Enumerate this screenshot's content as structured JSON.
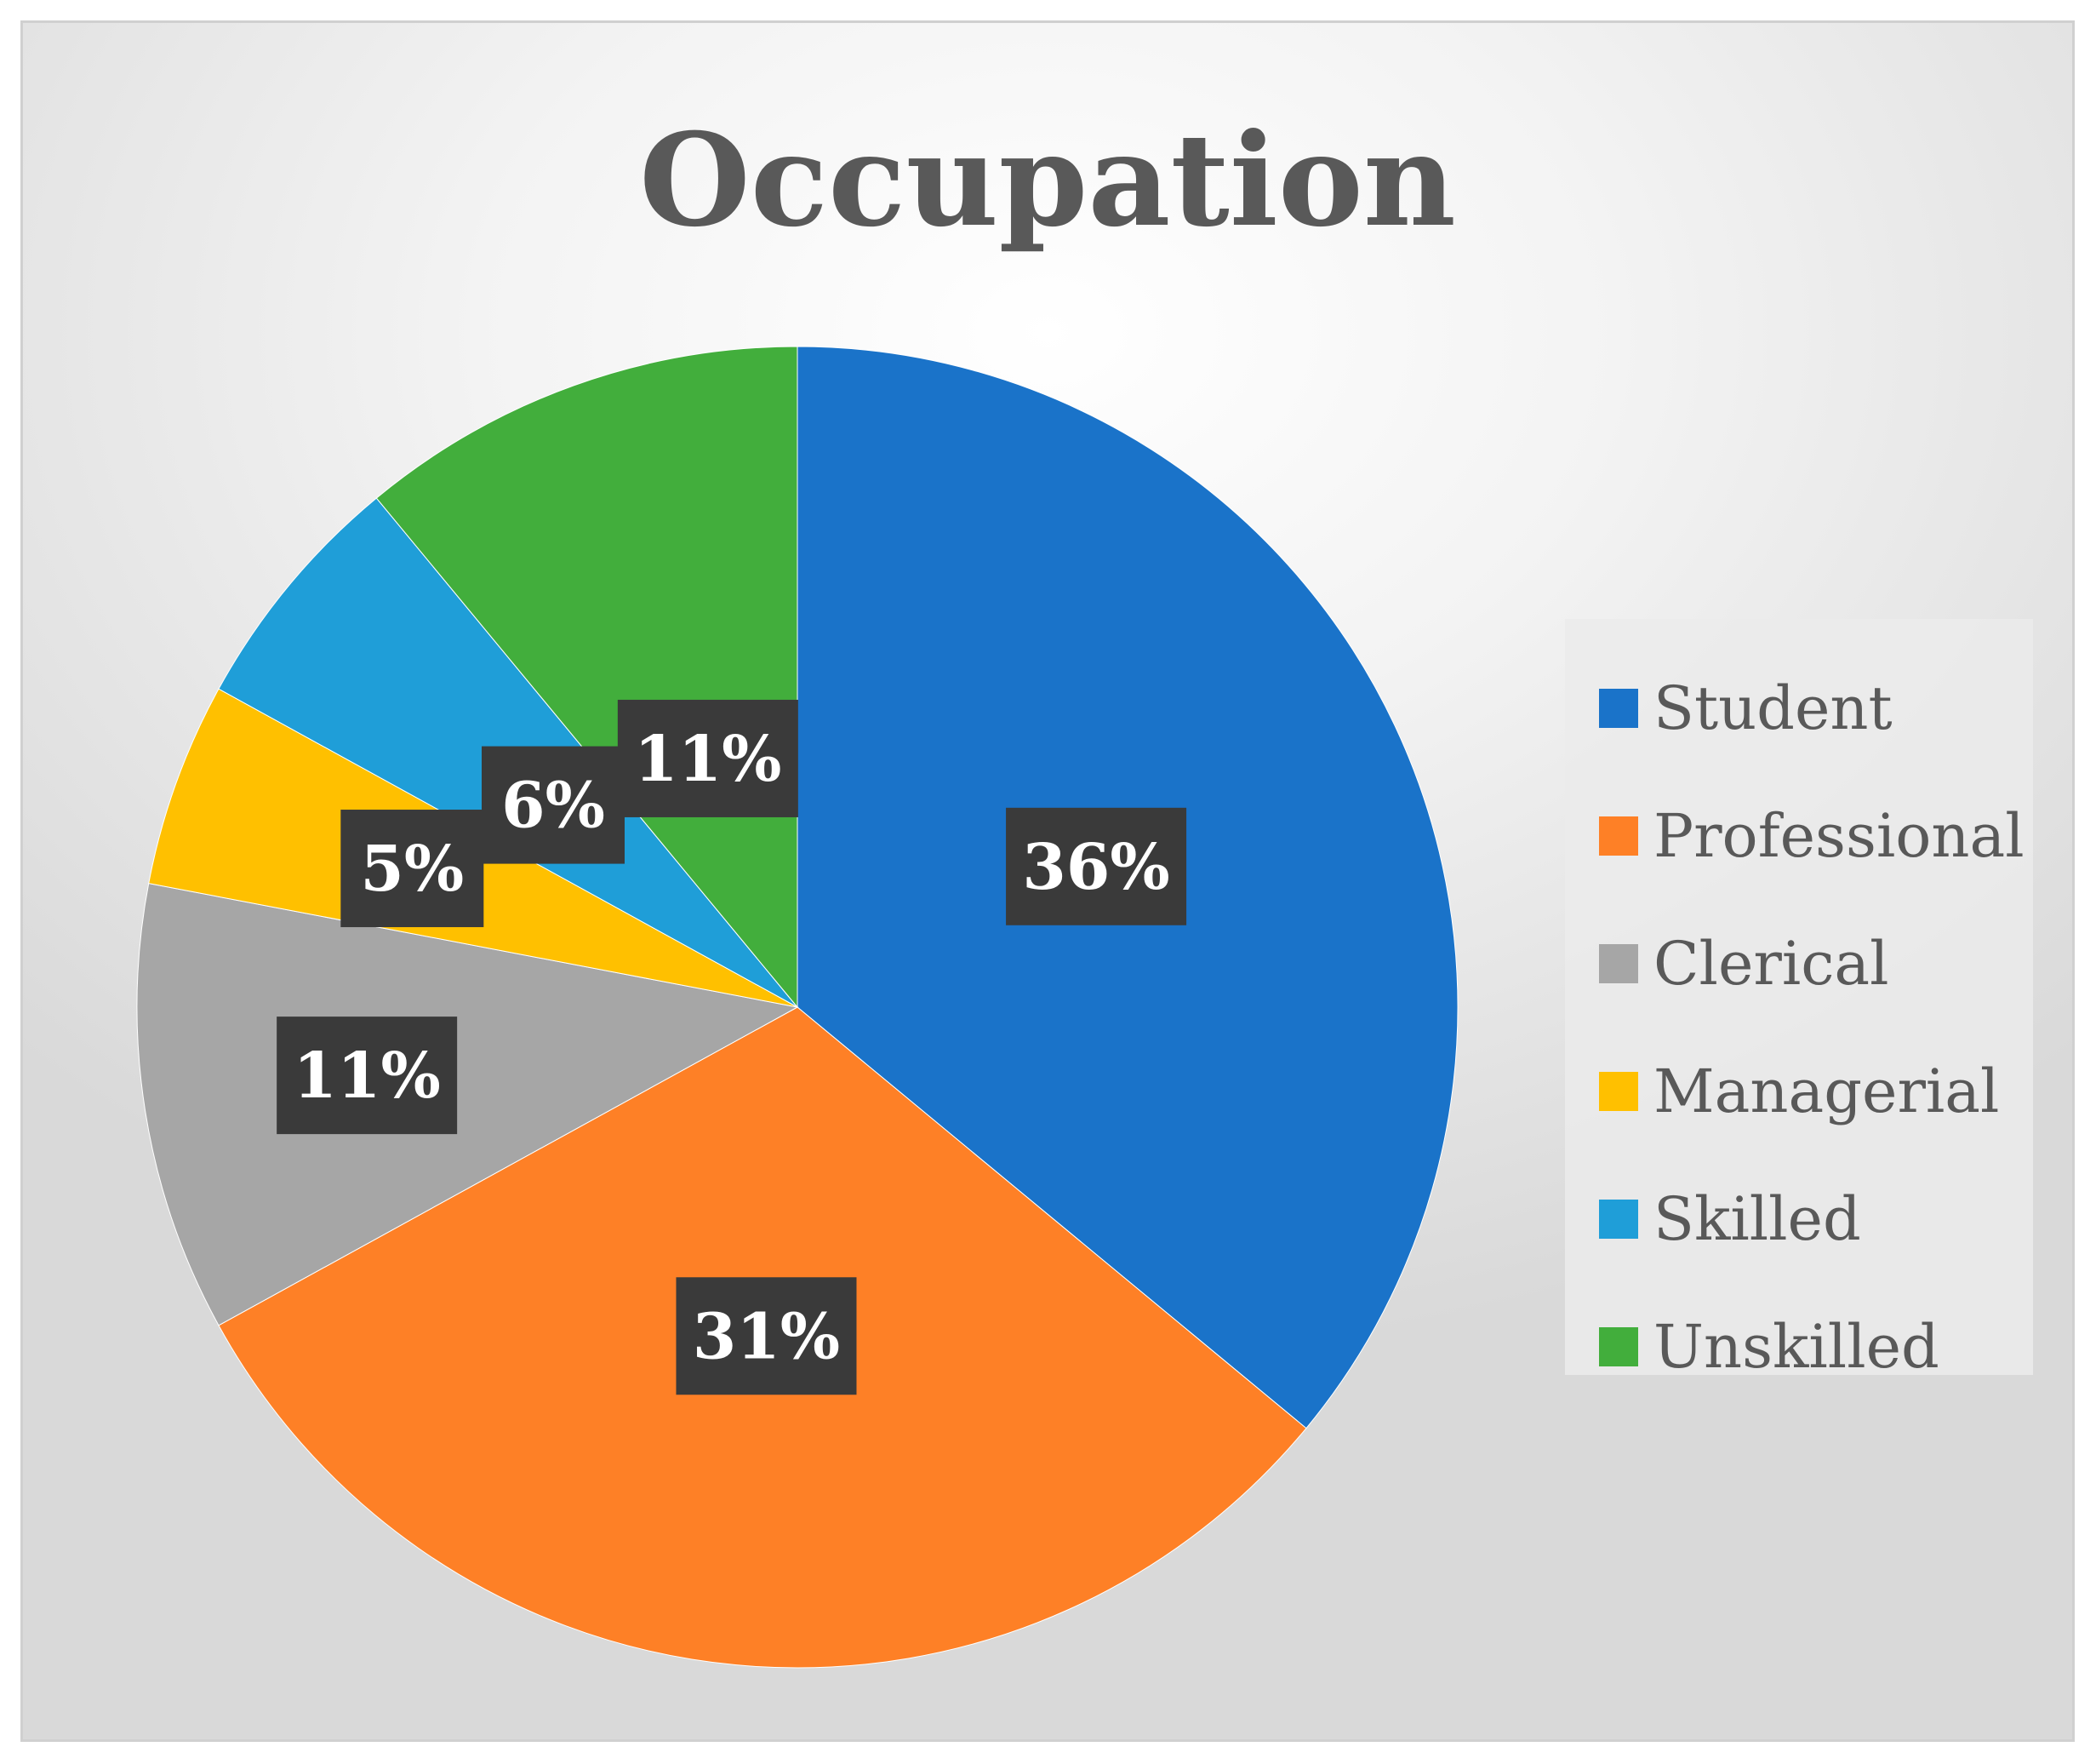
{
  "chart_data": {
    "type": "pie",
    "title": "Occupation",
    "categories": [
      "Student",
      "Professional",
      "Clerical",
      "Managerial",
      "Skilled",
      "Unskilled"
    ],
    "values": [
      36,
      31,
      11,
      5,
      6,
      11
    ],
    "data_labels": [
      "36%",
      "31%",
      "11%",
      "5%",
      "6%",
      "11%"
    ],
    "colors": [
      "#1a73c9",
      "#fe8026",
      "#a6a6a6",
      "#ffc000",
      "#1f9ed8",
      "#42ae3c"
    ],
    "legend_position": "right",
    "start_angle": "top, clockwise"
  }
}
